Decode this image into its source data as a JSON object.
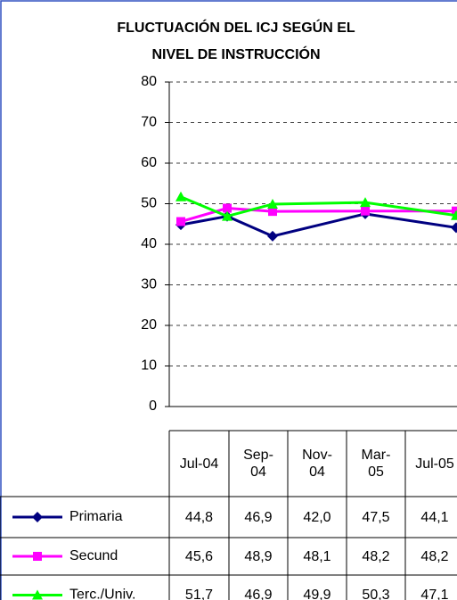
{
  "chart_data": {
    "type": "line",
    "title": [
      "FLUCTUACIÓN DEL ICJ SEGÚN EL",
      "NIVEL DE INSTRUCCIÓN"
    ],
    "categories": [
      "Jul-04",
      "Sep-04",
      "Nov-04",
      "Mar-05",
      "Jul-05"
    ],
    "series": [
      {
        "name": "Primaria",
        "color": "#000080",
        "marker": "diamond",
        "values": [
          44.8,
          46.9,
          42.0,
          47.5,
          44.1
        ],
        "value_labels": [
          "44,8",
          "46,9",
          "42,0",
          "47,5",
          "44,1"
        ]
      },
      {
        "name": "Secund",
        "color": "#ff00ff",
        "marker": "square",
        "values": [
          45.6,
          48.9,
          48.1,
          48.2,
          48.2
        ],
        "value_labels": [
          "45,6",
          "48,9",
          "48,1",
          "48,2",
          "48,2"
        ]
      },
      {
        "name": "Terc./Univ.",
        "color": "#00ff00",
        "marker": "triangle",
        "values": [
          51.7,
          46.9,
          49.9,
          50.3,
          47.1
        ],
        "value_labels": [
          "51,7",
          "46,9",
          "49,9",
          "50,3",
          "47,1"
        ]
      }
    ],
    "ylim": [
      0,
      80
    ],
    "yticks": [
      0,
      10,
      20,
      30,
      40,
      50,
      60,
      70,
      80
    ],
    "grid": true
  }
}
